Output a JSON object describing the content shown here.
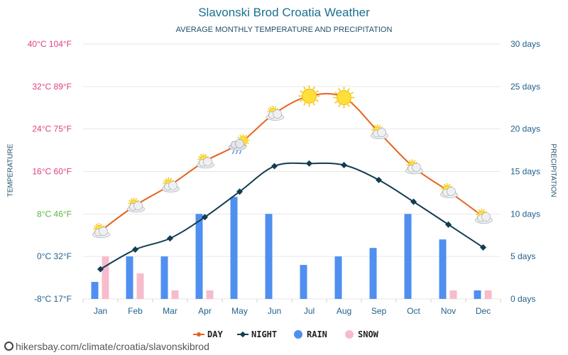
{
  "page": {
    "title": "Slavonski Brod Croatia Weather",
    "subtitle": "AVERAGE MONTHLY TEMPERATURE AND PRECIPITATION",
    "left_axis_title": "TEMPERATURE",
    "right_axis_title": "PRECIPITATION",
    "watermark": "hikersbay.com/climate/croatia/slavonskibrod"
  },
  "colors": {
    "day": "#e8611c",
    "night": "#123d52",
    "rain": "#4f8ff0",
    "snow": "#f7bccb",
    "grid": "#e6e6e6",
    "left_labels": [
      "#e03f83",
      "#e03f83",
      "#e03f83",
      "#e03f83",
      "#5bb445",
      "#1f5f8b",
      "#1f5f8b"
    ],
    "right_labels": "#1f5f8b",
    "month_labels": "#1f5f8b"
  },
  "chart_data": {
    "type": "line+bar",
    "title": "Slavonski Brod Croatia Weather",
    "subtitle": "AVERAGE MONTHLY TEMPERATURE AND PRECIPITATION",
    "categories": [
      "Jan",
      "Feb",
      "Mar",
      "Apr",
      "May",
      "Jun",
      "Jul",
      "Aug",
      "Sep",
      "Oct",
      "Nov",
      "Dec"
    ],
    "temperature_axis": {
      "label": "TEMPERATURE",
      "unit": "°C",
      "range": [
        -8,
        40
      ],
      "ticks": [
        {
          "value": 40,
          "label": "40°C 104°F"
        },
        {
          "value": 32,
          "label": "32°C 89°F"
        },
        {
          "value": 24,
          "label": "24°C 75°F"
        },
        {
          "value": 16,
          "label": "16°C 60°F"
        },
        {
          "value": 8,
          "label": "8°C 46°F"
        },
        {
          "value": 0,
          "label": "0°C 32°F"
        },
        {
          "value": -8,
          "label": "-8°C 17°F"
        }
      ]
    },
    "precipitation_axis": {
      "label": "PRECIPITATION",
      "unit": "days",
      "range": [
        0,
        30
      ],
      "ticks": [
        {
          "value": 30,
          "label": "30 days"
        },
        {
          "value": 25,
          "label": "25 days"
        },
        {
          "value": 20,
          "label": "20 days"
        },
        {
          "value": 15,
          "label": "15 days"
        },
        {
          "value": 10,
          "label": "10 days"
        },
        {
          "value": 5,
          "label": "5 days"
        },
        {
          "value": 0,
          "label": "0 days"
        }
      ]
    },
    "series": [
      {
        "name": "DAY",
        "kind": "line",
        "axis": "temperature",
        "values": [
          4.8,
          9.6,
          13.4,
          17.9,
          21.3,
          26.9,
          30.2,
          29.9,
          23.4,
          16.8,
          12.3,
          7.5
        ]
      },
      {
        "name": "NIGHT",
        "kind": "line",
        "axis": "temperature",
        "values": [
          -2.4,
          1.3,
          3.4,
          7.4,
          12.2,
          17.0,
          17.5,
          17.2,
          14.4,
          10.3,
          6.0,
          1.7
        ]
      },
      {
        "name": "RAIN",
        "kind": "bar",
        "axis": "precipitation",
        "values": [
          2,
          5,
          5,
          10,
          12,
          10,
          4,
          5,
          6,
          10,
          7,
          1
        ]
      },
      {
        "name": "SNOW",
        "kind": "bar",
        "axis": "precipitation",
        "values": [
          5,
          3,
          1,
          1,
          0,
          0,
          0,
          0,
          0,
          0,
          1,
          1
        ]
      }
    ],
    "day_icons": [
      "partly-cloudy",
      "partly-cloudy",
      "partly-cloudy",
      "partly-cloudy",
      "cloud-rain-sun",
      "partly-cloudy",
      "sun",
      "sun",
      "partly-cloudy",
      "partly-cloudy",
      "partly-cloudy",
      "partly-cloudy"
    ],
    "legend": [
      {
        "name": "DAY",
        "marker": "line-dot"
      },
      {
        "name": "NIGHT",
        "marker": "line-diamond"
      },
      {
        "name": "RAIN",
        "marker": "circle"
      },
      {
        "name": "SNOW",
        "marker": "circle"
      }
    ],
    "legend_position": "bottom-center"
  }
}
